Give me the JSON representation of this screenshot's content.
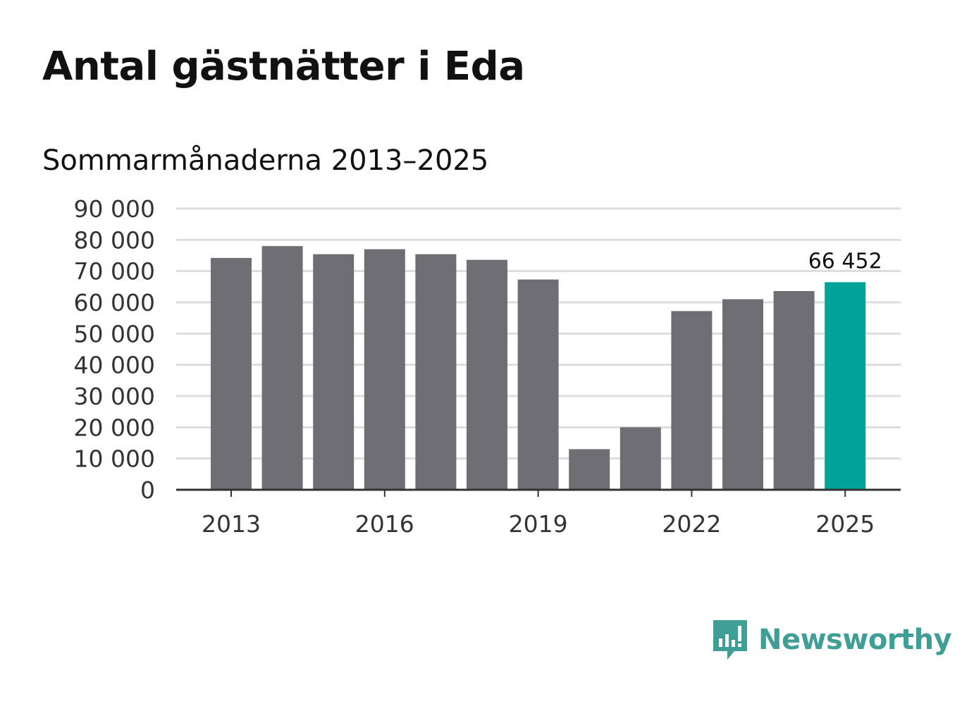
{
  "title": "Antal gästnätter i Eda",
  "subtitle": "Sommarmånaderna 2013–2025",
  "brand": {
    "name": "Newsworthy",
    "icon": "newsworthy-logo-icon",
    "color": "#3f9e95"
  },
  "colors": {
    "bar": "#6f6e74",
    "highlight": "#00a39a",
    "grid": "#dddddd",
    "axis": "#333333"
  },
  "chart_data": {
    "type": "bar",
    "categories": [
      "2013",
      "2014",
      "2015",
      "2016",
      "2017",
      "2018",
      "2019",
      "2020",
      "2021",
      "2022",
      "2023",
      "2024",
      "2025"
    ],
    "values": [
      74200,
      78000,
      75400,
      77000,
      75400,
      73600,
      67300,
      13000,
      20000,
      57200,
      61000,
      63600,
      66452
    ],
    "highlight_index": 12,
    "data_labels": [
      {
        "index": 12,
        "text": "66 452"
      }
    ],
    "x_tick_labels": [
      "2013",
      "2016",
      "2019",
      "2022",
      "2025"
    ],
    "y_ticks": [
      0,
      10000,
      20000,
      30000,
      40000,
      50000,
      60000,
      70000,
      80000,
      90000
    ],
    "y_tick_labels": [
      "0",
      "10 000",
      "20 000",
      "30 000",
      "40 000",
      "50 000",
      "60 000",
      "70 000",
      "80 000",
      "90 000"
    ],
    "ylim": [
      0,
      90000
    ],
    "grid": true,
    "legend": "none",
    "xlabel": "",
    "ylabel": ""
  }
}
